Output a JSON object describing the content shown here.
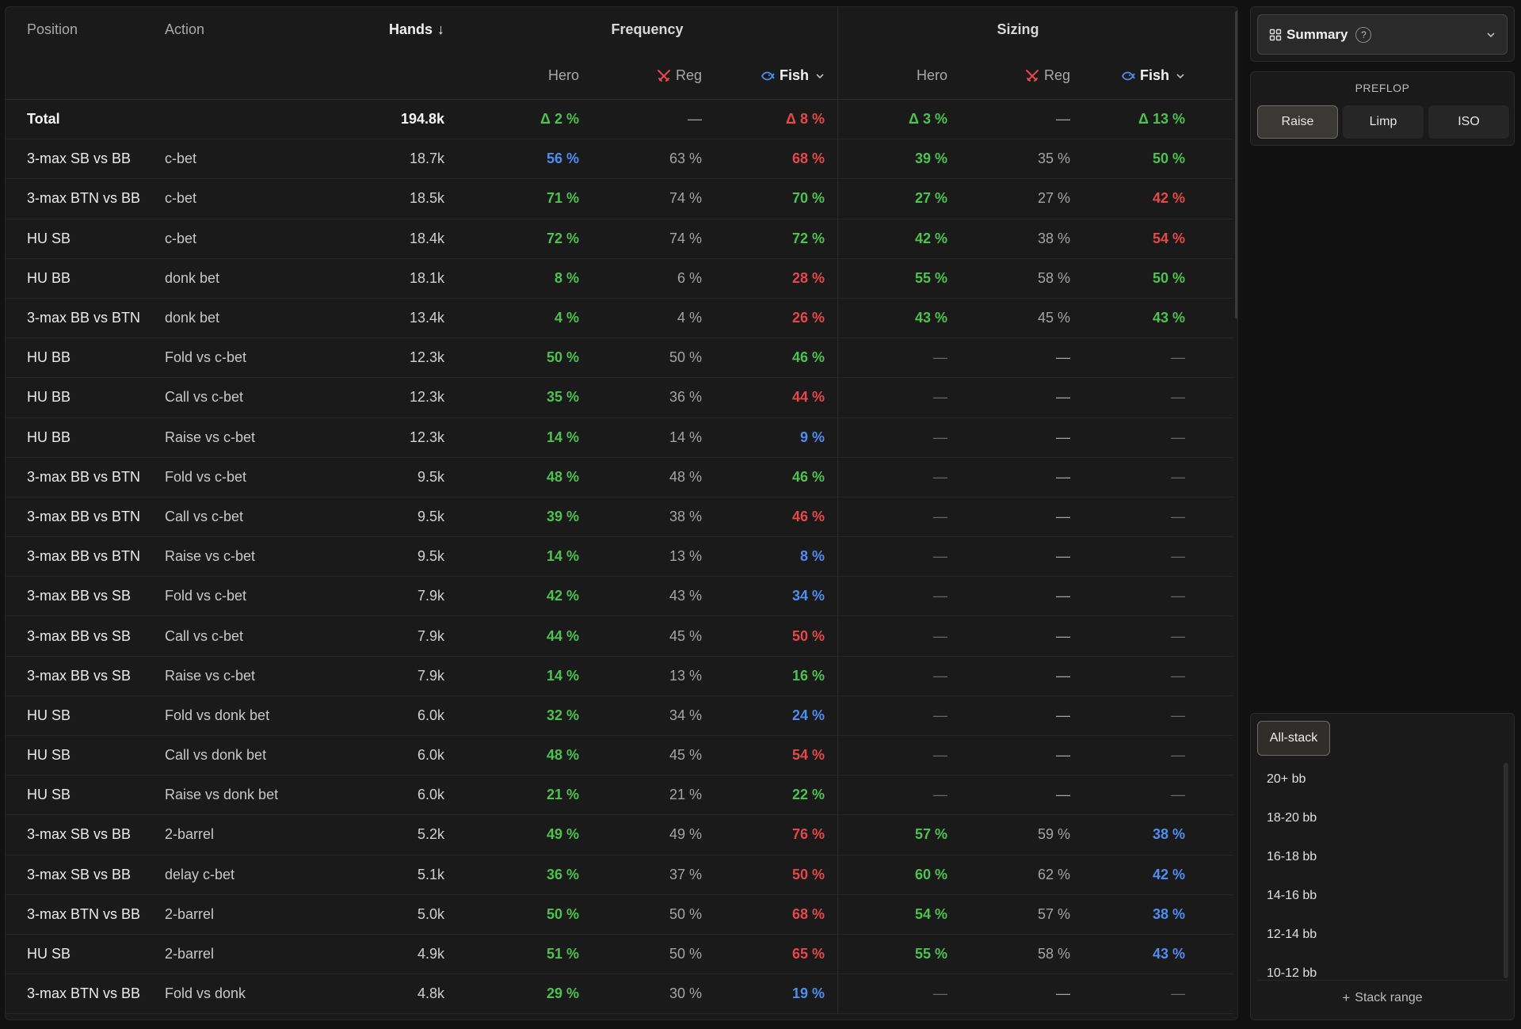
{
  "columns": {
    "position": "Position",
    "action": "Action",
    "hands": "Hands",
    "hands_sort_arrow": "↓",
    "frequency": "Frequency",
    "sizing": "Sizing",
    "hero": "Hero",
    "reg": "Reg",
    "fish": "Fish"
  },
  "total": {
    "label": "Total",
    "hands": "194.8k",
    "freq_hero": "Δ 2 %",
    "freq_reg": "—",
    "freq_fish": "Δ 8 %",
    "size_hero": "Δ 3 %",
    "size_reg": "—",
    "size_fish": "Δ 13 %"
  },
  "rows": [
    {
      "position": "3-max SB vs BB",
      "action": "c-bet",
      "hands": "18.7k",
      "fh": "56 %",
      "fh_c": "b",
      "fr": "63 %",
      "ff": "68 %",
      "ff_c": "r",
      "sh": "39 %",
      "sh_c": "g",
      "sr": "35 %",
      "sf": "50 %",
      "sf_c": "g"
    },
    {
      "position": "3-max BTN vs BB",
      "action": "c-bet",
      "hands": "18.5k",
      "fh": "71 %",
      "fh_c": "g",
      "fr": "74 %",
      "ff": "70 %",
      "ff_c": "g",
      "sh": "27 %",
      "sh_c": "g",
      "sr": "27 %",
      "sf": "42 %",
      "sf_c": "r"
    },
    {
      "position": "HU SB",
      "action": "c-bet",
      "hands": "18.4k",
      "fh": "72 %",
      "fh_c": "g",
      "fr": "74 %",
      "ff": "72 %",
      "ff_c": "g",
      "sh": "42 %",
      "sh_c": "g",
      "sr": "38 %",
      "sf": "54 %",
      "sf_c": "r"
    },
    {
      "position": "HU BB",
      "action": "donk bet",
      "hands": "18.1k",
      "fh": "8 %",
      "fh_c": "g",
      "fr": "6 %",
      "ff": "28 %",
      "ff_c": "r",
      "sh": "55 %",
      "sh_c": "g",
      "sr": "58 %",
      "sf": "50 %",
      "sf_c": "g"
    },
    {
      "position": "3-max BB vs BTN",
      "action": "donk bet",
      "hands": "13.4k",
      "fh": "4 %",
      "fh_c": "g",
      "fr": "4 %",
      "ff": "26 %",
      "ff_c": "r",
      "sh": "43 %",
      "sh_c": "g",
      "sr": "45 %",
      "sf": "43 %",
      "sf_c": "g"
    },
    {
      "position": "HU BB",
      "action": "Fold vs c-bet",
      "hands": "12.3k",
      "fh": "50 %",
      "fh_c": "g",
      "fr": "50 %",
      "ff": "46 %",
      "ff_c": "g",
      "sh": "—",
      "sh_c": "d",
      "sr": "—",
      "sf": "—",
      "sf_c": "d"
    },
    {
      "position": "HU BB",
      "action": "Call vs c-bet",
      "hands": "12.3k",
      "fh": "35 %",
      "fh_c": "g",
      "fr": "36 %",
      "ff": "44 %",
      "ff_c": "r",
      "sh": "—",
      "sh_c": "d",
      "sr": "—",
      "sf": "—",
      "sf_c": "d"
    },
    {
      "position": "HU BB",
      "action": "Raise vs c-bet",
      "hands": "12.3k",
      "fh": "14 %",
      "fh_c": "g",
      "fr": "14 %",
      "ff": "9 %",
      "ff_c": "b",
      "sh": "—",
      "sh_c": "d",
      "sr": "—",
      "sf": "—",
      "sf_c": "d"
    },
    {
      "position": "3-max BB vs BTN",
      "action": "Fold vs c-bet",
      "hands": "9.5k",
      "fh": "48 %",
      "fh_c": "g",
      "fr": "48 %",
      "ff": "46 %",
      "ff_c": "g",
      "sh": "—",
      "sh_c": "d",
      "sr": "—",
      "sf": "—",
      "sf_c": "d"
    },
    {
      "position": "3-max BB vs BTN",
      "action": "Call vs c-bet",
      "hands": "9.5k",
      "fh": "39 %",
      "fh_c": "g",
      "fr": "38 %",
      "ff": "46 %",
      "ff_c": "r",
      "sh": "—",
      "sh_c": "d",
      "sr": "—",
      "sf": "—",
      "sf_c": "d"
    },
    {
      "position": "3-max BB vs BTN",
      "action": "Raise vs c-bet",
      "hands": "9.5k",
      "fh": "14 %",
      "fh_c": "g",
      "fr": "13 %",
      "ff": "8 %",
      "ff_c": "b",
      "sh": "—",
      "sh_c": "d",
      "sr": "—",
      "sf": "—",
      "sf_c": "d"
    },
    {
      "position": "3-max BB vs SB",
      "action": "Fold vs c-bet",
      "hands": "7.9k",
      "fh": "42 %",
      "fh_c": "g",
      "fr": "43 %",
      "ff": "34 %",
      "ff_c": "b",
      "sh": "—",
      "sh_c": "d",
      "sr": "—",
      "sf": "—",
      "sf_c": "d"
    },
    {
      "position": "3-max BB vs SB",
      "action": "Call vs c-bet",
      "hands": "7.9k",
      "fh": "44 %",
      "fh_c": "g",
      "fr": "45 %",
      "ff": "50 %",
      "ff_c": "r",
      "sh": "—",
      "sh_c": "d",
      "sr": "—",
      "sf": "—",
      "sf_c": "d"
    },
    {
      "position": "3-max BB vs SB",
      "action": "Raise vs c-bet",
      "hands": "7.9k",
      "fh": "14 %",
      "fh_c": "g",
      "fr": "13 %",
      "ff": "16 %",
      "ff_c": "g",
      "sh": "—",
      "sh_c": "d",
      "sr": "—",
      "sf": "—",
      "sf_c": "d"
    },
    {
      "position": "HU SB",
      "action": "Fold vs donk bet",
      "hands": "6.0k",
      "fh": "32 %",
      "fh_c": "g",
      "fr": "34 %",
      "ff": "24 %",
      "ff_c": "b",
      "sh": "—",
      "sh_c": "d",
      "sr": "—",
      "sf": "—",
      "sf_c": "d"
    },
    {
      "position": "HU SB",
      "action": "Call vs donk bet",
      "hands": "6.0k",
      "fh": "48 %",
      "fh_c": "g",
      "fr": "45 %",
      "ff": "54 %",
      "ff_c": "r",
      "sh": "—",
      "sh_c": "d",
      "sr": "—",
      "sf": "—",
      "sf_c": "d"
    },
    {
      "position": "HU SB",
      "action": "Raise vs donk bet",
      "hands": "6.0k",
      "fh": "21 %",
      "fh_c": "g",
      "fr": "21 %",
      "ff": "22 %",
      "ff_c": "g",
      "sh": "—",
      "sh_c": "d",
      "sr": "—",
      "sf": "—",
      "sf_c": "d"
    },
    {
      "position": "3-max SB vs BB",
      "action": "2-barrel",
      "hands": "5.2k",
      "fh": "49 %",
      "fh_c": "g",
      "fr": "49 %",
      "ff": "76 %",
      "ff_c": "r",
      "sh": "57 %",
      "sh_c": "g",
      "sr": "59 %",
      "sf": "38 %",
      "sf_c": "b"
    },
    {
      "position": "3-max SB vs BB",
      "action": "delay c-bet",
      "hands": "5.1k",
      "fh": "36 %",
      "fh_c": "g",
      "fr": "37 %",
      "ff": "50 %",
      "ff_c": "r",
      "sh": "60 %",
      "sh_c": "g",
      "sr": "62 %",
      "sf": "42 %",
      "sf_c": "b"
    },
    {
      "position": "3-max BTN vs BB",
      "action": "2-barrel",
      "hands": "5.0k",
      "fh": "50 %",
      "fh_c": "g",
      "fr": "50 %",
      "ff": "68 %",
      "ff_c": "r",
      "sh": "54 %",
      "sh_c": "g",
      "sr": "57 %",
      "sf": "38 %",
      "sf_c": "b"
    },
    {
      "position": "HU SB",
      "action": "2-barrel",
      "hands": "4.9k",
      "fh": "51 %",
      "fh_c": "g",
      "fr": "50 %",
      "ff": "65 %",
      "ff_c": "r",
      "sh": "55 %",
      "sh_c": "g",
      "sr": "58 %",
      "sf": "43 %",
      "sf_c": "b"
    },
    {
      "position": "3-max BTN vs BB",
      "action": "Fold vs donk",
      "hands": "4.8k",
      "fh": "29 %",
      "fh_c": "g",
      "fr": "30 %",
      "ff": "19 %",
      "ff_c": "b",
      "sh": "—",
      "sh_c": "d",
      "sr": "—",
      "sf": "—",
      "sf_c": "d"
    }
  ],
  "sidebar": {
    "summary_label": "Summary",
    "help_glyph": "?",
    "preflop_title": "PREFLOP",
    "preflop_options": [
      "Raise",
      "Limp",
      "ISO"
    ],
    "preflop_selected": "Raise",
    "stack_selected": "All-stack",
    "stack_options": [
      "20+ bb",
      "18-20 bb",
      "16-18 bb",
      "14-16 bb",
      "12-14 bb",
      "10-12 bb"
    ],
    "stack_range_label": "Stack range",
    "stack_range_glyph": "+"
  },
  "colors": {
    "green": "#4ec24f",
    "red": "#e54848",
    "blue": "#4f8ef0",
    "reg_icon": "#e5484d",
    "fish_icon": "#4f8ef0"
  },
  "icons": {
    "reg": "crossed-swords-icon",
    "fish": "fish-icon",
    "summary": "grid-icon",
    "help": "help-circle-icon",
    "dropdown": "chevron-down-icon",
    "add": "plus-icon"
  }
}
